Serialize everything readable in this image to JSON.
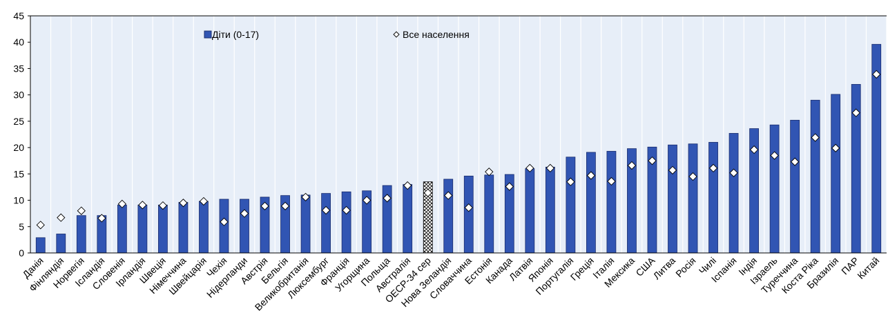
{
  "chart_data": {
    "type": "bar",
    "categories": [
      "Данія",
      "Фінляндія",
      "Норвегія",
      "Ісландія",
      "Словенія",
      "Ірландія",
      "Швеція",
      "Німеччина",
      "Швейцарія",
      "Чехія",
      "Нідерланди",
      "Австрія",
      "Бельгія",
      "Великобританія",
      "Люксембург",
      "Франція",
      "Угорщина",
      "Польща",
      "Австралія",
      "OECP-34 сер",
      "Нова Зеландія",
      "Словаччина",
      "Естонія",
      "Канада",
      "Латвія",
      "Японія",
      "Португалія",
      "Греція",
      "Італія",
      "Мексика",
      "США",
      "Литва",
      "Росія",
      "Чилі",
      "Іспанія",
      "Індія",
      "Ізраель",
      "Туреччина",
      "Коста Ріка",
      "Бразилія",
      "ПАР",
      "Китай"
    ],
    "series": [
      {
        "name": "Діти (0-17)",
        "kind": "bar",
        "color": "#3155b3",
        "values": [
          2.9,
          3.6,
          7.1,
          7.1,
          9.1,
          9.1,
          9.1,
          9.6,
          9.8,
          10.2,
          10.2,
          10.6,
          10.9,
          11.0,
          11.3,
          11.6,
          11.8,
          12.8,
          13.0,
          13.5,
          14.0,
          14.6,
          14.8,
          14.9,
          16.0,
          16.3,
          18.2,
          19.1,
          19.3,
          19.8,
          20.1,
          20.5,
          20.7,
          21.0,
          22.7,
          23.6,
          24.3,
          25.2,
          29.0,
          30.1,
          32.0,
          39.6
        ]
      },
      {
        "name": "Все населення",
        "kind": "marker",
        "color": "#ffffff",
        "values": [
          5.3,
          6.7,
          8.0,
          6.6,
          9.3,
          9.1,
          9.0,
          9.5,
          9.8,
          5.9,
          7.5,
          8.9,
          8.9,
          10.6,
          8.1,
          8.1,
          10.0,
          10.4,
          12.8,
          11.4,
          10.9,
          8.6,
          15.4,
          12.6,
          16.1,
          16.1,
          13.5,
          14.7,
          13.6,
          16.6,
          17.5,
          15.7,
          14.5,
          16.1,
          15.2,
          19.6,
          18.5,
          17.3,
          21.9,
          19.9,
          26.6,
          33.9
        ]
      }
    ],
    "highlight_category": "OECP-34 сер",
    "highlight_pattern": "crosshatch",
    "ylim": [
      0,
      45
    ],
    "yticks": [
      "0",
      "5",
      "10",
      "15",
      "20",
      "25",
      "30",
      "35",
      "40",
      "45"
    ],
    "grid": "vertical",
    "legend_position": "top"
  },
  "colors": {
    "bar": "#3155b3",
    "bar_edge": "#1b2e6e",
    "grid": "#ffffff",
    "plot_bg": "#e7eef8"
  }
}
